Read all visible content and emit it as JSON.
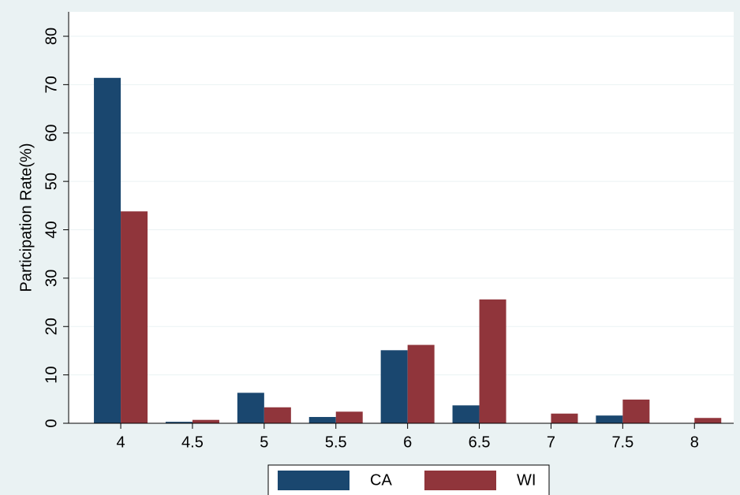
{
  "chart_data": {
    "type": "bar",
    "y_label": "Participation Rate(%)",
    "categories": [
      "4",
      "4.5",
      "5",
      "5.5",
      "6",
      "6.5",
      "7",
      "7.5",
      "8"
    ],
    "series": [
      {
        "name": "CA",
        "color": "#1a476f",
        "values": [
          71.4,
          0.3,
          6.3,
          1.3,
          15.1,
          3.7,
          0,
          1.6,
          0
        ]
      },
      {
        "name": "WI",
        "color": "#90353b",
        "values": [
          43.8,
          0.7,
          3.3,
          2.4,
          16.2,
          25.6,
          2.0,
          4.9,
          1.1
        ]
      }
    ],
    "ylim": [
      0,
      80
    ],
    "yticks": [
      0,
      10,
      20,
      30,
      40,
      50,
      60,
      70,
      80
    ],
    "grid": true
  }
}
